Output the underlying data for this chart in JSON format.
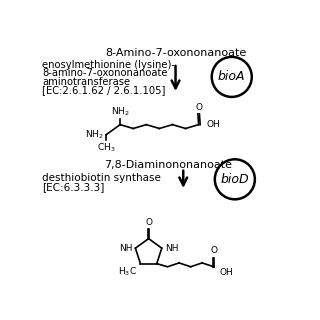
{
  "bg_color": "#ffffff",
  "title1": "8-Amino-7-oxononanoate",
  "enzyme1_line1": "enosylmethionine (lysine)-",
  "enzyme1_line2": "8-amino-7-oxononanoate",
  "enzyme1_line3": "aminotransferase",
  "enzyme1_line4": "[EC:2.6.1.62 / 2.6.1.105]",
  "gene1": "bioA",
  "product1": "7,8-Diaminononanoate",
  "enzyme2_line1": "desthiobiotin synthase",
  "enzyme2_line2": "[EC:6.3.3.3]",
  "gene2": "bioD",
  "figsize": [
    3.2,
    3.2
  ],
  "dpi": 100
}
